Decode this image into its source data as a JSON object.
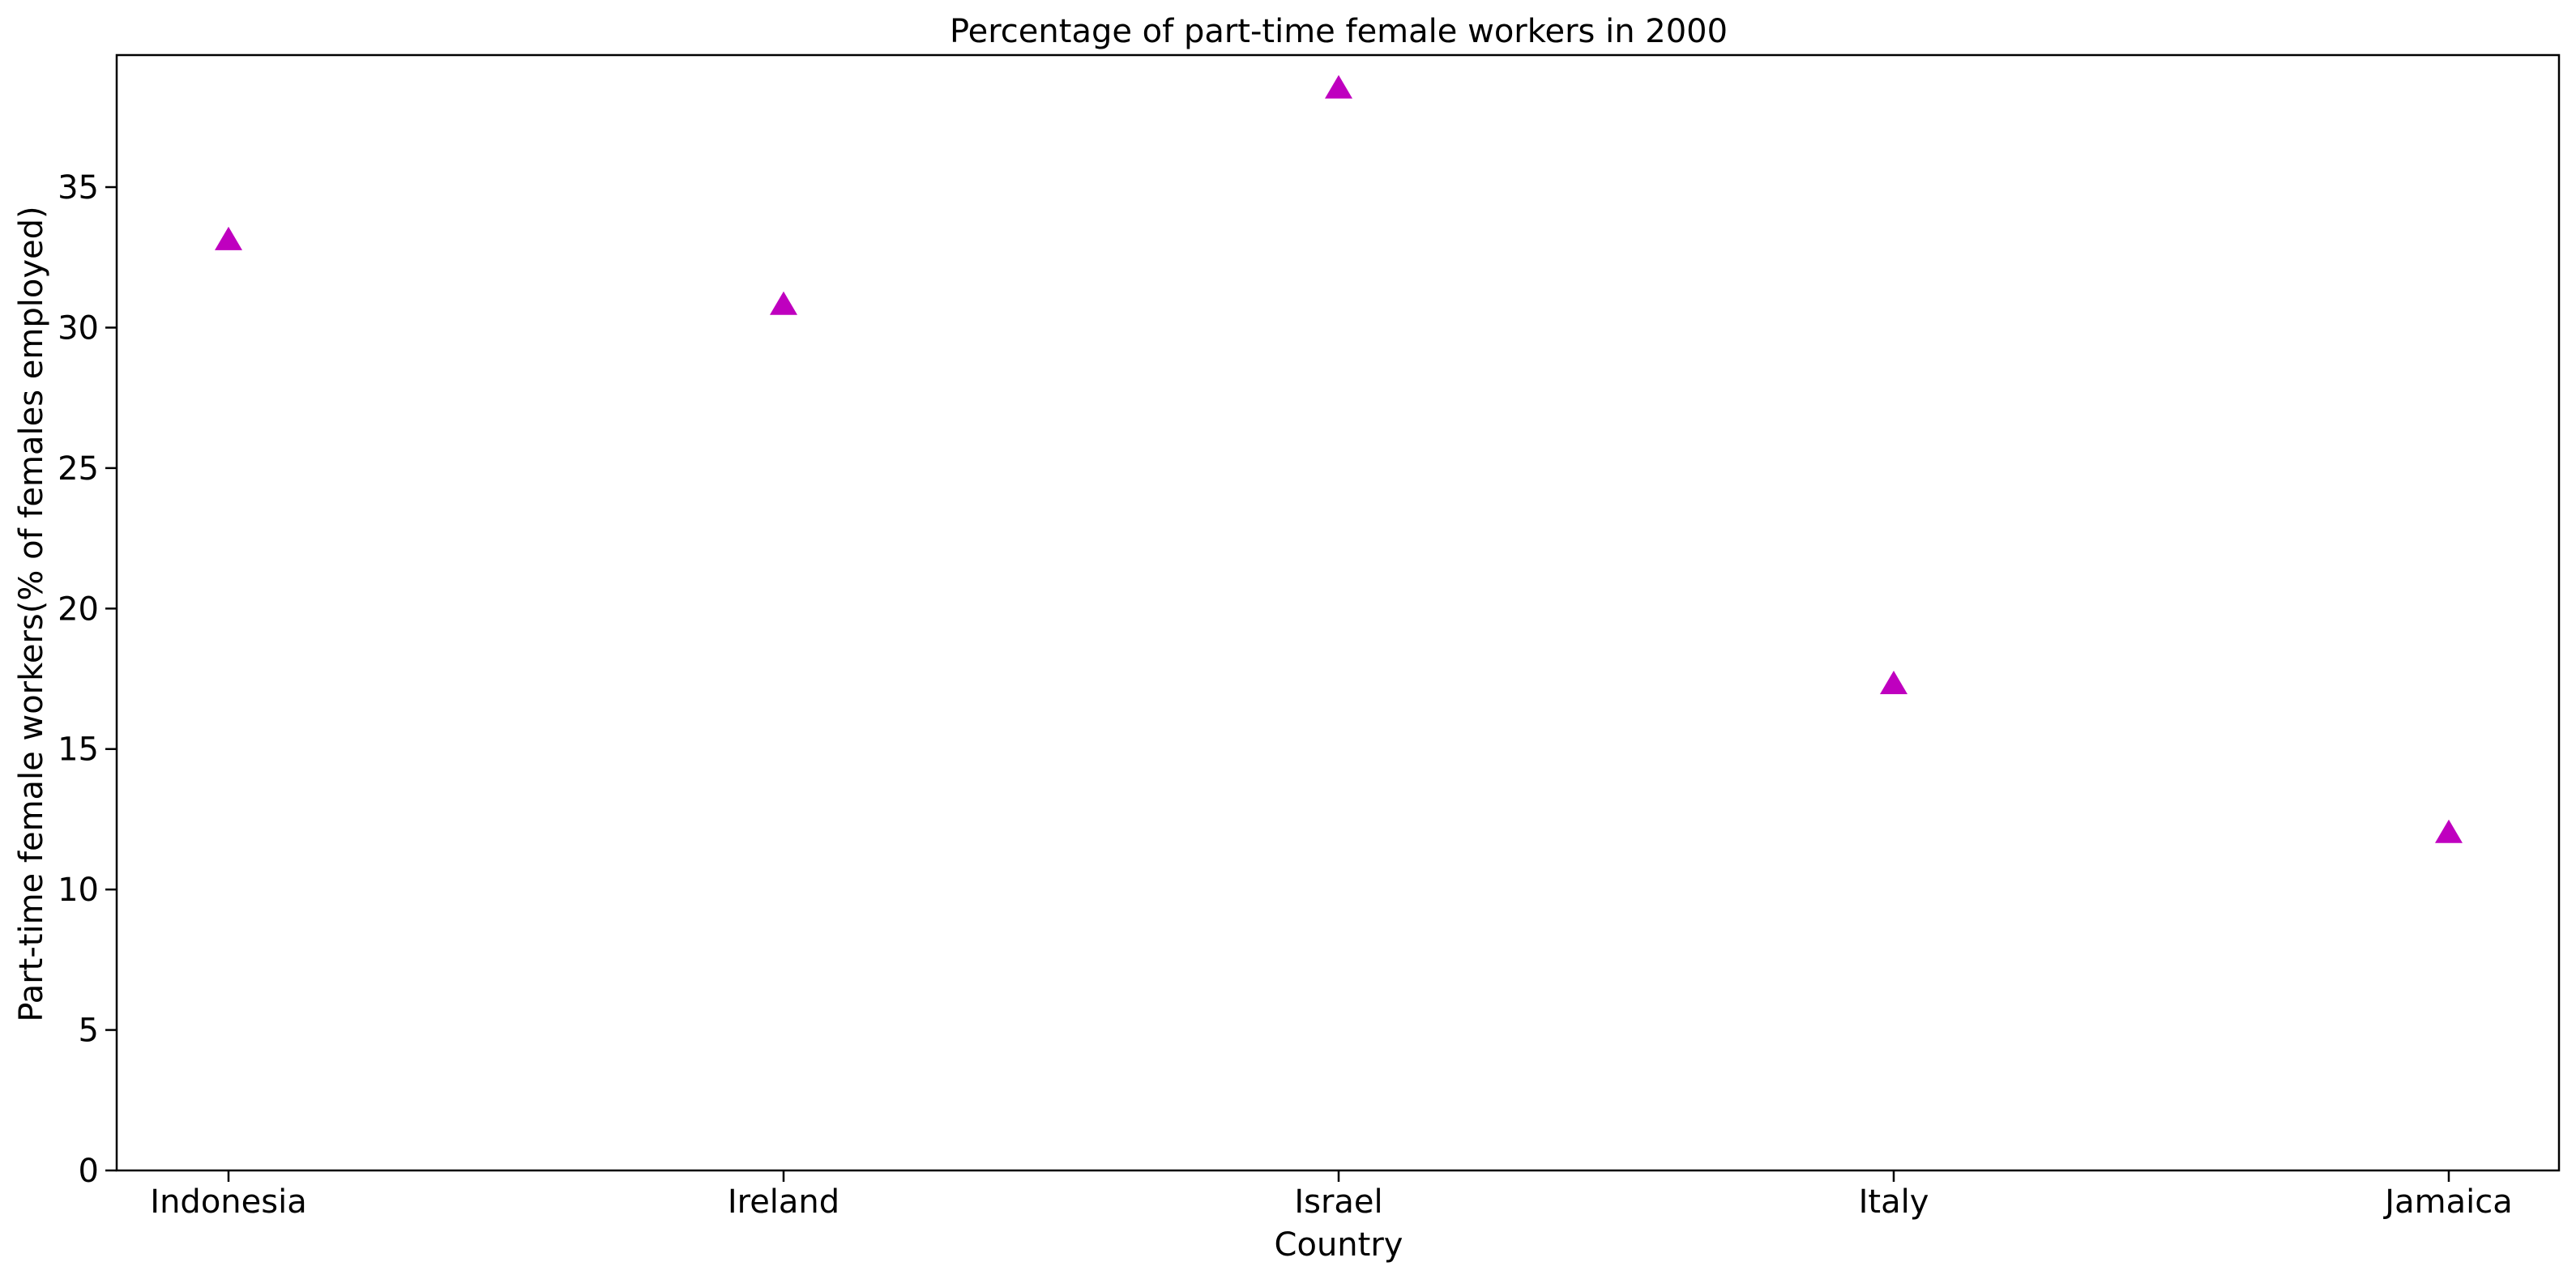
{
  "chart_data": {
    "type": "scatter",
    "title": "Percentage of part-time female workers in 2000",
    "xlabel": "Country",
    "ylabel": "Part-time female workers(% of females employed)",
    "categories": [
      "Indonesia",
      "Ireland",
      "Israel",
      "Italy",
      "Jamaica"
    ],
    "series": [
      {
        "values": [
          33.1,
          30.8,
          38.5,
          17.3,
          12.0
        ]
      }
    ],
    "ylim": [
      0,
      39.7
    ],
    "yticks": [
      0,
      5,
      10,
      15,
      20,
      25,
      30,
      35
    ],
    "marker": "triangle",
    "color": "#bf00bf",
    "grid": false
  }
}
